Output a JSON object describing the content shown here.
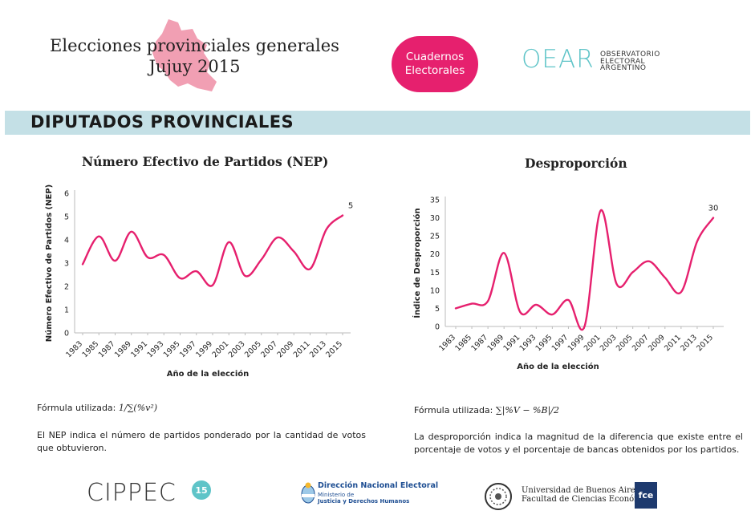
{
  "header": {
    "title_line1": "Elecciones provinciales generales",
    "title_line2": "Jujuy 2015",
    "badge_line1": "Cuadernos",
    "badge_line2": "Electorales",
    "logo_letters": "OEAR",
    "logo_sub1": "OBSERVATORIO",
    "logo_sub2": "ELECTORAL",
    "logo_sub3": "ARGENTINO"
  },
  "section": {
    "title": "DIPUTADOS PROVINCIALES"
  },
  "colors": {
    "accent": "#e6206e",
    "band": "#c4e0e6",
    "teal": "#5fc4c8"
  },
  "chart_data": [
    {
      "type": "line",
      "title": "Número Efectivo de Partidos (NEP)",
      "xlabel": "Año de la elección",
      "ylabel": "Número Efectivo de Partidos (NEP)",
      "ylim": [
        0,
        6
      ],
      "yticks": [
        "0",
        "1",
        "2",
        "3",
        "4",
        "5",
        "6"
      ],
      "categories": [
        "1983",
        "1985",
        "1987",
        "1989",
        "1991",
        "1993",
        "1995",
        "1997",
        "1999",
        "2001",
        "2003",
        "2005",
        "2007",
        "2009",
        "2011",
        "2013",
        "2015"
      ],
      "values": [
        2.95,
        4.15,
        3.1,
        4.35,
        3.25,
        3.35,
        2.35,
        2.65,
        2.05,
        3.9,
        2.45,
        3.15,
        4.1,
        3.5,
        2.75,
        4.45,
        5.05
      ],
      "end_label": "5"
    },
    {
      "type": "line",
      "title": "Desproporción",
      "xlabel": "Año de la elección",
      "ylabel": "Índice de Desproporción",
      "ylim": [
        0,
        35
      ],
      "yticks": [
        "0",
        "5",
        "10",
        "15",
        "20",
        "25",
        "30",
        "35"
      ],
      "categories": [
        "1983",
        "1985",
        "1987",
        "1989",
        "1991",
        "1993",
        "1995",
        "1997",
        "1999",
        "2001",
        "2003",
        "2005",
        "2007",
        "2009",
        "2011",
        "2013",
        "2015"
      ],
      "values": [
        5,
        6.3,
        7,
        20.3,
        4,
        6,
        3.3,
        7.3,
        0,
        32,
        11.7,
        15,
        18,
        13.5,
        9.5,
        23.5,
        30
      ],
      "end_label": "30"
    }
  ],
  "formulas": {
    "nep_label": "Fórmula utilizada:",
    "nep_formula": "1/∑(%v²)",
    "nep_desc": "El NEP indica el número de partidos ponderado por la cantidad de votos que obtuvieron.",
    "disp_label": "Fórmula utilizada:",
    "disp_formula": "∑|%V − %B|/2",
    "disp_desc": "La desproporción indica la magnitud de la diferencia que existe entre el porcentaje de votos y el porcentaje de bancas obtenidos por los partidos."
  },
  "footer": {
    "cippec": "CIPPEC",
    "cippec_badge": "15",
    "dine_title": "Dirección Nacional Electoral",
    "dine_sub1": "Ministerio de",
    "dine_sub2": "Justicia y Derechos Humanos",
    "uba_line1": "Universidad de Buenos Aires",
    "uba_line2": "Facultad de Ciencias Económicas",
    "fce": "fce"
  }
}
